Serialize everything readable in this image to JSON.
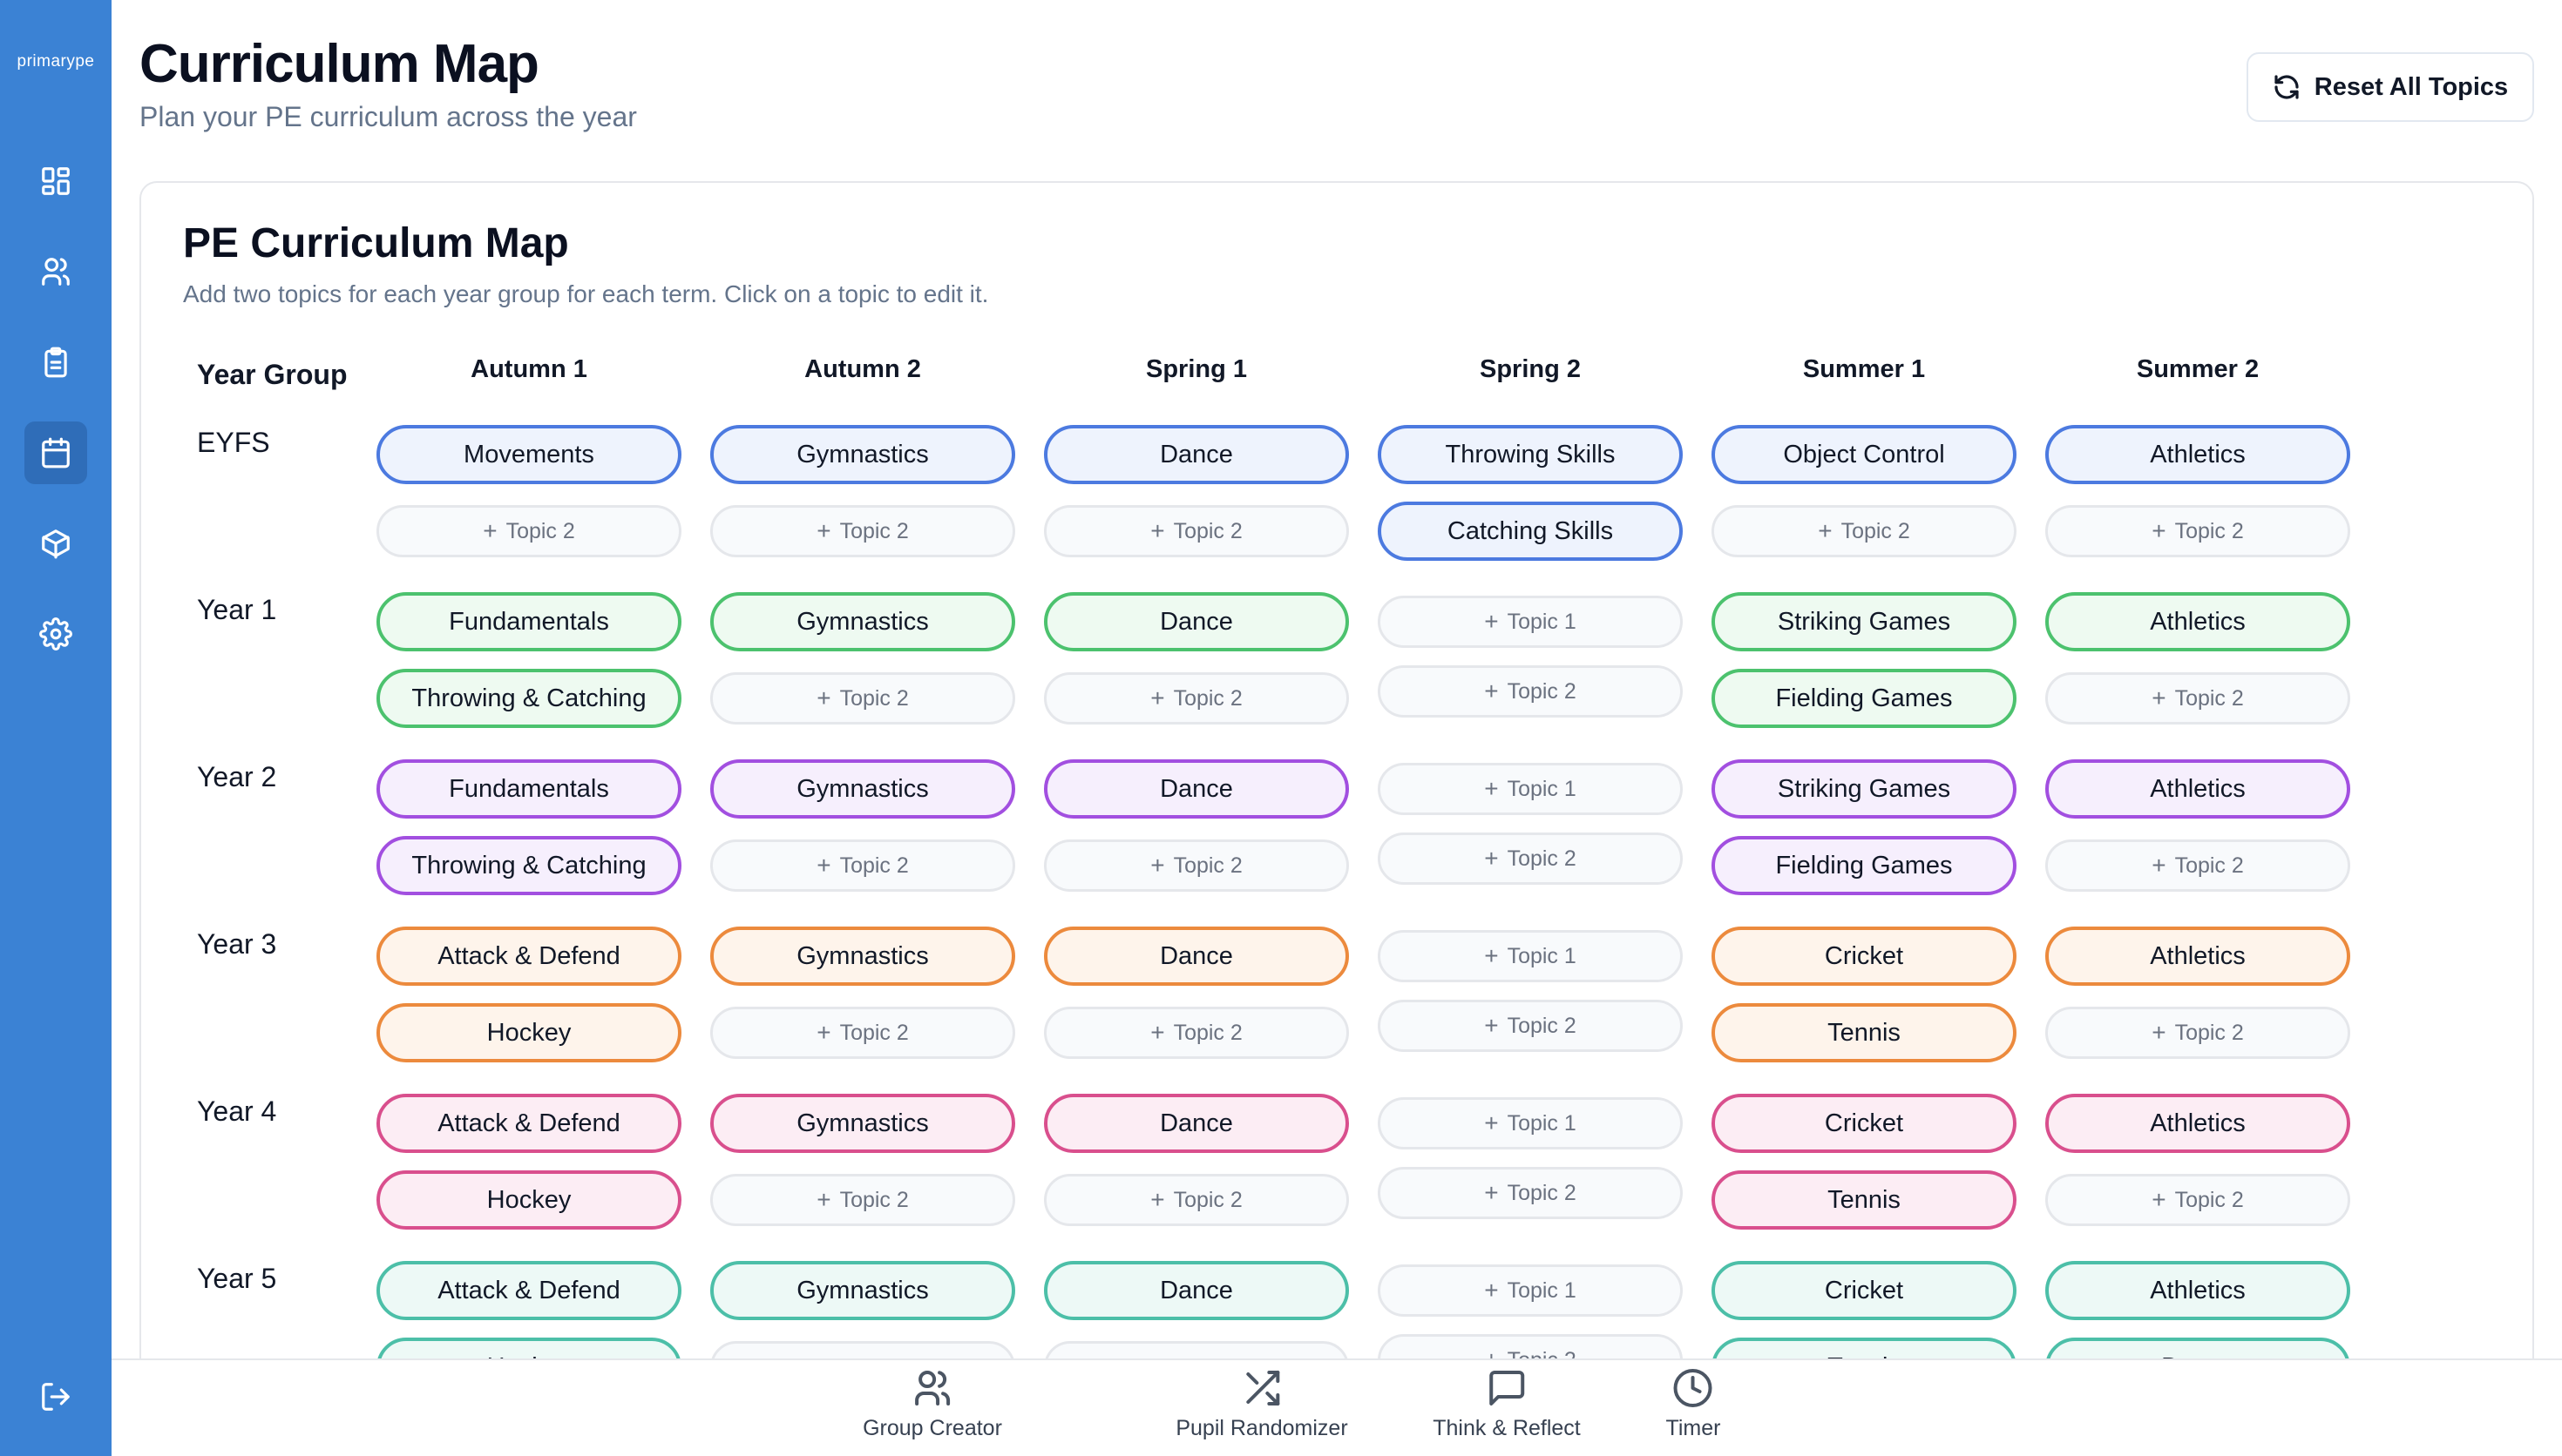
{
  "app": {
    "logo": "primarype"
  },
  "sidebar": {
    "items": [
      {
        "icon": "dashboard-icon"
      },
      {
        "icon": "users-icon"
      },
      {
        "icon": "clipboard-icon"
      },
      {
        "icon": "calendar-icon",
        "active": true
      },
      {
        "icon": "box-icon"
      },
      {
        "icon": "settings-icon"
      }
    ],
    "logout_icon": "logout-icon"
  },
  "header": {
    "title": "Curriculum Map",
    "subtitle": "Plan your PE curriculum across the year",
    "reset_label": "Reset All Topics"
  },
  "card": {
    "title": "PE Curriculum Map",
    "description": "Add two topics for each year group for each term. Click on a topic to edit it.",
    "year_group_header": "Year Group",
    "terms": [
      "Autumn 1",
      "Autumn 2",
      "Spring 1",
      "Spring 2",
      "Summer 1",
      "Summer 2"
    ]
  },
  "colors": {
    "blue": "#4c7ae0",
    "green": "#4cc26e",
    "purple": "#a24fe0",
    "orange": "#ec8a3d",
    "pink": "#d94f8d",
    "teal": "#4cbfa8"
  },
  "rows": [
    {
      "label": "EYFS",
      "color": "blue",
      "cells": [
        [
          "Movements",
          null
        ],
        [
          "Gymnastics",
          null
        ],
        [
          "Dance",
          null
        ],
        [
          "Throwing Skills",
          "Catching Skills"
        ],
        [
          "Object Control",
          null
        ],
        [
          "Athletics",
          null
        ]
      ]
    },
    {
      "label": "Year 1",
      "color": "green",
      "cells": [
        [
          "Fundamentals",
          "Throwing & Catching"
        ],
        [
          "Gymnastics",
          null
        ],
        [
          "Dance",
          null
        ],
        [
          null,
          null
        ],
        [
          "Striking Games",
          "Fielding Games"
        ],
        [
          "Athletics",
          null
        ]
      ]
    },
    {
      "label": "Year 2",
      "color": "purple",
      "cells": [
        [
          "Fundamentals",
          "Throwing & Catching"
        ],
        [
          "Gymnastics",
          null
        ],
        [
          "Dance",
          null
        ],
        [
          null,
          null
        ],
        [
          "Striking Games",
          "Fielding Games"
        ],
        [
          "Athletics",
          null
        ]
      ]
    },
    {
      "label": "Year 3",
      "color": "orange",
      "cells": [
        [
          "Attack & Defend",
          "Hockey"
        ],
        [
          "Gymnastics",
          null
        ],
        [
          "Dance",
          null
        ],
        [
          null,
          null
        ],
        [
          "Cricket",
          "Tennis"
        ],
        [
          "Athletics",
          null
        ]
      ]
    },
    {
      "label": "Year 4",
      "color": "pink",
      "cells": [
        [
          "Attack & Defend",
          "Hockey"
        ],
        [
          "Gymnastics",
          null
        ],
        [
          "Dance",
          null
        ],
        [
          null,
          null
        ],
        [
          "Cricket",
          "Tennis"
        ],
        [
          "Athletics",
          null
        ]
      ]
    },
    {
      "label": "Year 5",
      "color": "teal",
      "cells": [
        [
          "Attack & Defend",
          "Hockey"
        ],
        [
          "Gymnastics",
          null
        ],
        [
          "Dance",
          null
        ],
        [
          null,
          null
        ],
        [
          "Cricket",
          "Tennis"
        ],
        [
          "Athletics",
          "Dance"
        ]
      ]
    }
  ],
  "placeholders": {
    "topic1": "Topic 1",
    "topic2": "Topic 2"
  },
  "toolbar": {
    "tools": [
      {
        "label": "Group Creator",
        "icon": "group-icon"
      },
      {
        "label": "Pupil Randomizer",
        "icon": "shuffle-icon"
      },
      {
        "label": "Think & Reflect",
        "icon": "message-icon"
      },
      {
        "label": "Timer",
        "icon": "clock-icon"
      }
    ]
  }
}
